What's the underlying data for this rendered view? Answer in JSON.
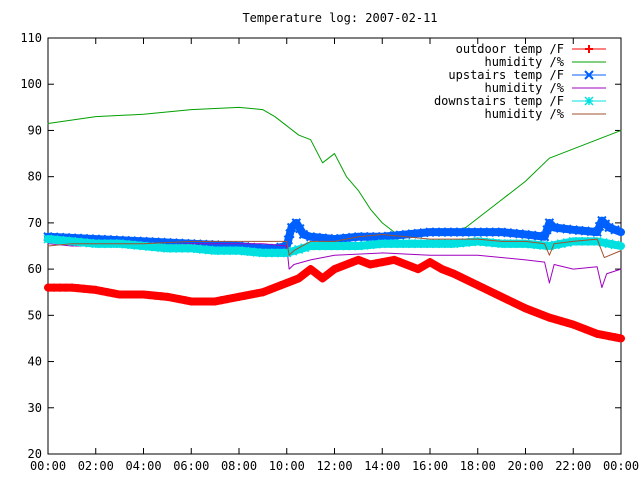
{
  "chart_data": {
    "type": "line",
    "title": "Temperature log: 2007-02-11",
    "xlabel": "",
    "ylabel": "",
    "x_range_hours": [
      0,
      24
    ],
    "ylim": [
      20,
      110
    ],
    "y_ticks": [
      20,
      30,
      40,
      50,
      60,
      70,
      80,
      90,
      100,
      110
    ],
    "y_tick_labels": [
      "20",
      "30",
      "40",
      "50",
      "60",
      "70",
      "80",
      "90",
      "100",
      "110"
    ],
    "x_ticks_hours": [
      0,
      2,
      4,
      6,
      8,
      10,
      12,
      14,
      16,
      18,
      20,
      22,
      24
    ],
    "x_tick_labels": [
      "00:00",
      "02:00",
      "04:00",
      "06:00",
      "08:00",
      "10:00",
      "12:00",
      "14:00",
      "16:00",
      "18:00",
      "20:00",
      "22:00",
      "00:00"
    ],
    "grid": false,
    "legend_position": "top-right",
    "series": [
      {
        "name": "outdoor temp /F",
        "color": "#ff0000",
        "marker": "plus",
        "x": [
          0,
          1,
          2,
          3,
          4,
          5,
          6,
          7,
          8,
          9,
          9.5,
          10,
          10.5,
          11,
          11.25,
          11.5,
          12,
          12.5,
          13,
          13.5,
          14,
          14.5,
          15,
          15.5,
          16,
          16.5,
          17,
          18,
          19,
          20,
          21,
          22,
          23,
          24
        ],
        "y": [
          56,
          56,
          55.5,
          54.5,
          54.5,
          54,
          53,
          53,
          54,
          55,
          56,
          57,
          58,
          60,
          59,
          58,
          60,
          61,
          62,
          61,
          61.5,
          62,
          61,
          60,
          61.5,
          60,
          59,
          56.5,
          54,
          51.5,
          49.5,
          48,
          46,
          45
        ]
      },
      {
        "name": "humidity /%",
        "color": "#00a000",
        "marker": "none",
        "x": [
          0,
          2,
          4,
          6,
          8,
          9,
          9.5,
          10,
          10.5,
          11,
          11.5,
          12,
          12.5,
          13,
          13.5,
          14,
          14.5,
          15,
          15.5,
          16,
          16.5,
          17,
          17.5,
          18,
          19,
          20,
          21,
          22,
          23,
          24
        ],
        "y": [
          91.5,
          93,
          93.5,
          94.5,
          95,
          94.5,
          93,
          91,
          89,
          88,
          83,
          85,
          80,
          77,
          73,
          70,
          68,
          68,
          68,
          68,
          67.5,
          68,
          69,
          71,
          75,
          79,
          84,
          86,
          88,
          90
        ]
      },
      {
        "name": "upstairs temp /F",
        "color": "#0060ff",
        "marker": "x",
        "x": [
          0,
          2,
          4,
          6,
          8,
          9,
          9.5,
          10,
          10.2,
          10.4,
          10.7,
          11,
          12,
          13,
          14,
          15,
          16,
          17,
          18,
          19,
          20,
          20.8,
          21,
          21.2,
          22,
          23,
          23.2,
          23.5,
          24
        ],
        "y": [
          67,
          66.5,
          66,
          65.5,
          65,
          64.5,
          64.5,
          65,
          69,
          70,
          67.5,
          67,
          66.5,
          67,
          67,
          67.5,
          68,
          68,
          68,
          68,
          67.5,
          67,
          70,
          69,
          68.5,
          68,
          70.5,
          69,
          68
        ]
      },
      {
        "name": "humidity /%",
        "color": "#a000c0",
        "marker": "none",
        "x": [
          0,
          1,
          2,
          4,
          6,
          8,
          9,
          10,
          10.1,
          10.3,
          11,
          12,
          14,
          16,
          18,
          20,
          20.8,
          21,
          21.2,
          22,
          23,
          23.2,
          23.4,
          24
        ],
        "y": [
          65.5,
          65,
          65,
          65,
          65.5,
          65.5,
          65.5,
          65,
          60,
          61,
          62,
          63,
          63.5,
          63,
          63,
          62,
          61.5,
          57,
          61,
          60,
          60.5,
          56,
          59,
          60
        ]
      },
      {
        "name": "downstairs temp /F",
        "color": "#00e0e0",
        "marker": "star",
        "x": [
          0,
          1,
          2,
          3,
          4,
          5,
          6,
          7,
          8,
          9,
          10,
          11,
          12,
          13,
          14,
          15,
          16,
          17,
          18,
          19,
          20,
          21,
          22,
          23,
          24
        ],
        "y": [
          66.5,
          66,
          65.5,
          65.5,
          65,
          64.5,
          64.5,
          64,
          64,
          63.5,
          63.5,
          65,
          65,
          65,
          65.5,
          65.5,
          65.5,
          65.5,
          66,
          65.5,
          65.5,
          65,
          66,
          66,
          65
        ]
      },
      {
        "name": "humidity /%",
        "color": "#a0522d",
        "marker": "none",
        "x": [
          0,
          1,
          2,
          4,
          6,
          8,
          9,
          10,
          10.1,
          10.3,
          11,
          12,
          13,
          14,
          15,
          16,
          17,
          18,
          19,
          20,
          20.8,
          21,
          21.2,
          22,
          23,
          23.3,
          24
        ],
        "y": [
          65,
          65.5,
          65.5,
          65.5,
          66,
          66,
          66,
          66,
          63,
          64,
          66,
          66,
          67,
          67.5,
          67,
          66.5,
          66.5,
          66.5,
          66,
          66,
          65.5,
          63,
          65.5,
          66,
          66.5,
          62.5,
          64
        ]
      }
    ]
  }
}
